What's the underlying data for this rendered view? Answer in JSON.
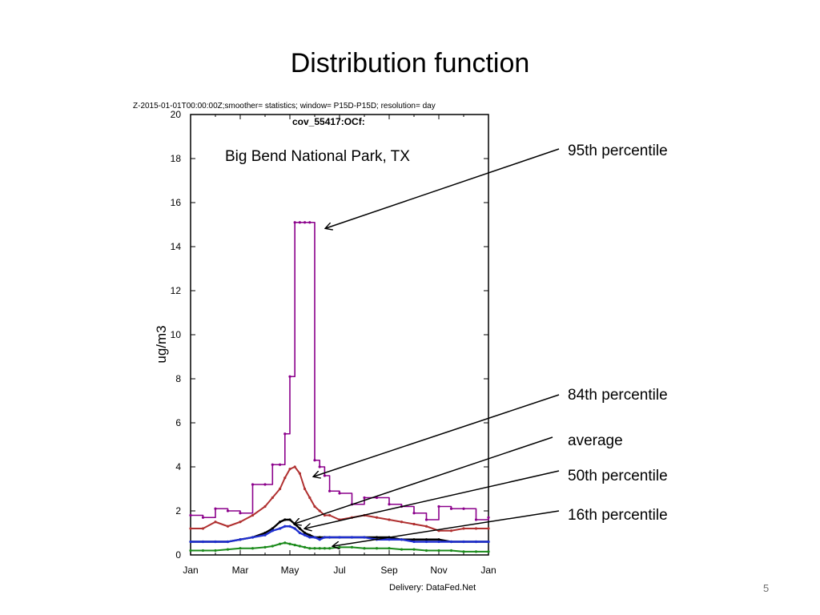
{
  "slide": {
    "title": "Distribution function",
    "page_number": "5"
  },
  "plot_header": "Z-2015-01-01T00:00:00Z;smoother= statistics; window= P15D-P15D; resolution= day",
  "delivery": "Delivery: DataFed.Net",
  "colors": {
    "p95": "#8b008b",
    "p84": "#b03030",
    "average": "#000000",
    "p50": "#1f2fd0",
    "p16": "#1a8a1a"
  },
  "chart_data": {
    "type": "line",
    "title": "cov_55417:OCf:",
    "subtitle": "Big Bend National Park, TX",
    "ylabel": "ug/m3",
    "xlabel": "",
    "ylim": [
      0,
      20
    ],
    "y_ticks": [
      "0",
      "2",
      "4",
      "6",
      "8",
      "10",
      "12",
      "14",
      "16",
      "18",
      "20"
    ],
    "x_ticks": [
      "Jan",
      "Mar",
      "May",
      "Jul",
      "Sep",
      "Nov",
      "Jan"
    ],
    "grid": false,
    "x": [
      0,
      0.5,
      1,
      1.5,
      2,
      2.5,
      3,
      3.3,
      3.6,
      3.8,
      4.0,
      4.2,
      4.4,
      4.6,
      4.8,
      5.0,
      5.2,
      5.4,
      5.6,
      6,
      6.5,
      7,
      7.5,
      8,
      8.5,
      9,
      9.5,
      10,
      10.5,
      11,
      11.5,
      12
    ],
    "series": [
      {
        "name": "95th percentile",
        "values": [
          1.8,
          1.7,
          2.1,
          2.0,
          1.9,
          3.2,
          3.2,
          4.1,
          4.1,
          5.5,
          8.1,
          15.1,
          15.1,
          15.1,
          15.1,
          4.3,
          4.0,
          3.6,
          2.9,
          2.8,
          2.3,
          2.6,
          2.6,
          2.3,
          2.2,
          1.9,
          1.6,
          2.2,
          2.1,
          2.1,
          1.6,
          1.7
        ]
      },
      {
        "name": "84th percentile",
        "values": [
          1.2,
          1.2,
          1.5,
          1.3,
          1.5,
          1.8,
          2.2,
          2.6,
          3.0,
          3.5,
          3.9,
          4.0,
          3.7,
          3.0,
          2.6,
          2.2,
          2.0,
          1.8,
          1.8,
          1.6,
          1.7,
          1.8,
          1.7,
          1.6,
          1.5,
          1.4,
          1.3,
          1.1,
          1.1,
          1.2,
          1.2,
          1.2
        ]
      },
      {
        "name": "average",
        "values": [
          0.6,
          0.6,
          0.6,
          0.6,
          0.7,
          0.8,
          1.0,
          1.2,
          1.5,
          1.6,
          1.6,
          1.4,
          1.2,
          1.0,
          0.9,
          0.8,
          0.8,
          0.8,
          0.8,
          0.8,
          0.8,
          0.8,
          0.8,
          0.8,
          0.7,
          0.7,
          0.7,
          0.7,
          0.6,
          0.6,
          0.6,
          0.6
        ]
      },
      {
        "name": "50th percentile",
        "values": [
          0.6,
          0.6,
          0.6,
          0.6,
          0.7,
          0.8,
          0.9,
          1.1,
          1.2,
          1.3,
          1.3,
          1.2,
          1.0,
          0.9,
          0.8,
          0.8,
          0.7,
          0.8,
          0.8,
          0.8,
          0.8,
          0.8,
          0.7,
          0.7,
          0.7,
          0.6,
          0.6,
          0.6,
          0.6,
          0.6,
          0.6,
          0.6
        ]
      },
      {
        "name": "16th percentile",
        "values": [
          0.2,
          0.2,
          0.2,
          0.25,
          0.3,
          0.3,
          0.35,
          0.4,
          0.5,
          0.55,
          0.5,
          0.45,
          0.4,
          0.35,
          0.3,
          0.3,
          0.3,
          0.3,
          0.3,
          0.35,
          0.35,
          0.3,
          0.3,
          0.3,
          0.25,
          0.25,
          0.2,
          0.2,
          0.2,
          0.15,
          0.15,
          0.15
        ]
      }
    ],
    "annotations": [
      "95th percentile",
      "84th percentile",
      "average",
      "50th percentile",
      "16th percentile"
    ]
  }
}
